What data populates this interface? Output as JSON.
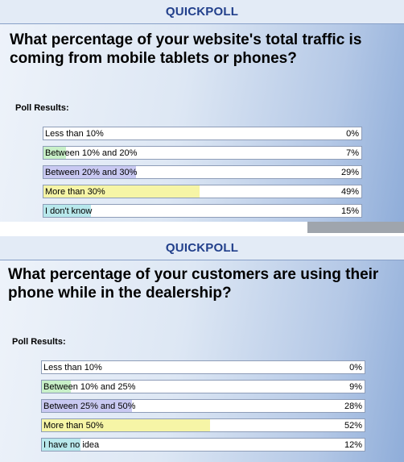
{
  "polls": [
    {
      "header": "QUICKPOLL",
      "question": "What percentage of your website's total traffic is coming from mobile tablets or phones?",
      "results_label": "Poll Results:",
      "options": [
        {
          "label": "Less than 10%",
          "percent": "0%",
          "value": 0,
          "color": "#f4b6b6"
        },
        {
          "label": "Between 10% and 20%",
          "percent": "7%",
          "value": 7,
          "color": "#c8f0c8"
        },
        {
          "label": "Between 20% and 30%",
          "percent": "29%",
          "value": 29,
          "color": "#c9c9f2"
        },
        {
          "label": "More than 30%",
          "percent": "49%",
          "value": 49,
          "color": "#f6f5a6"
        },
        {
          "label": "I don't know",
          "percent": "15%",
          "value": 15,
          "color": "#b8e8ec"
        }
      ]
    },
    {
      "header": "QUICKPOLL",
      "question": "What percentage of your customers are using their phone while in the dealership?",
      "results_label": "Poll Results:",
      "options": [
        {
          "label": "Less than 10%",
          "percent": "0%",
          "value": 0,
          "color": "#f4b6b6"
        },
        {
          "label": "Between 10% and 25%",
          "percent": "9%",
          "value": 9,
          "color": "#c8f0c8"
        },
        {
          "label": "Between 25% and 50%",
          "percent": "28%",
          "value": 28,
          "color": "#c9c9f2"
        },
        {
          "label": "More than 50%",
          "percent": "52%",
          "value": 52,
          "color": "#f6f5a6"
        },
        {
          "label": "I have no idea",
          "percent": "12%",
          "value": 12,
          "color": "#b8e8ec"
        }
      ]
    }
  ]
}
